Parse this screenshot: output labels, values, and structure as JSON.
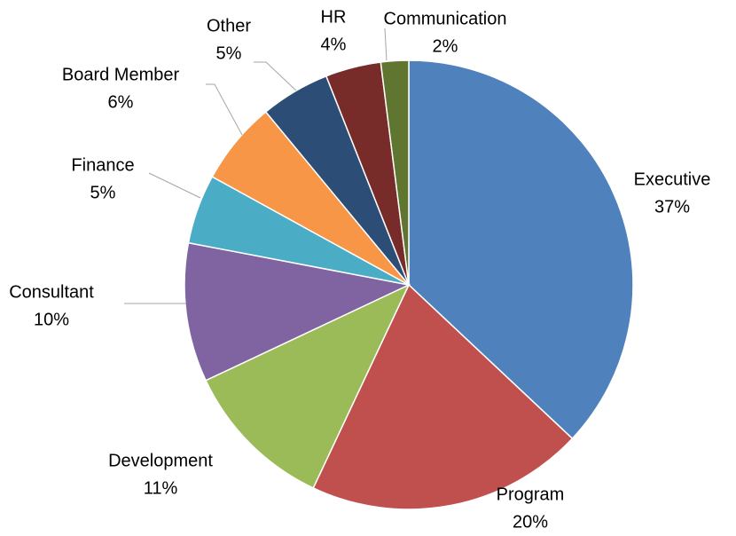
{
  "chart_data": {
    "type": "pie",
    "categories": [
      "Executive",
      "Program",
      "Development",
      "Consultant",
      "Finance",
      "Board Member",
      "Other",
      "HR",
      "Communication"
    ],
    "values": [
      37,
      20,
      11,
      10,
      5,
      6,
      5,
      4,
      2
    ],
    "value_labels": [
      "37%",
      "20%",
      "11%",
      "10%",
      "5%",
      "6%",
      "5%",
      "4%",
      "2%"
    ],
    "colors": [
      "#4f81bd",
      "#c0504d",
      "#9bbb59",
      "#8064a2",
      "#4bacc6",
      "#f79646",
      "#2c4d75",
      "#772c2a",
      "#5f7530"
    ]
  }
}
